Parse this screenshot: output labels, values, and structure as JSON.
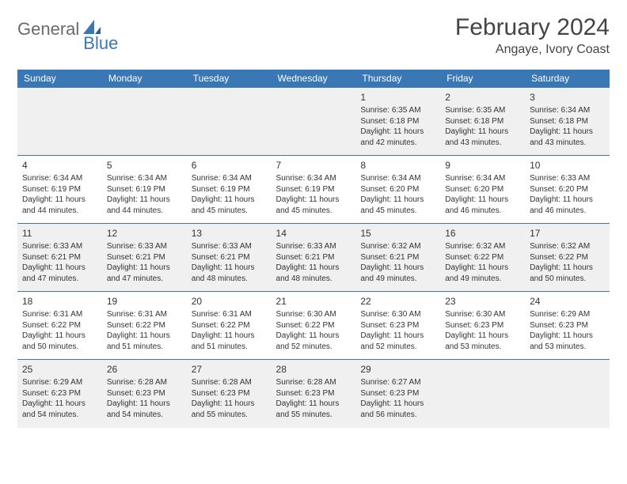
{
  "logo": {
    "part1": "General",
    "part2": "Blue",
    "accent_color": "#3a78b5",
    "gray_color": "#6a6a6a"
  },
  "title": "February 2024",
  "location": "Angaye, Ivory Coast",
  "colors": {
    "header_bg": "#3a78b5",
    "header_text": "#ffffff",
    "row_border": "#3a78b5",
    "odd_row_bg": "#f0f0f0",
    "even_row_bg": "#ffffff",
    "text": "#333333"
  },
  "fonts": {
    "title_size": 30,
    "location_size": 16,
    "header_size": 12,
    "cell_size": 10,
    "daynum_size": 12
  },
  "weekdays": [
    "Sunday",
    "Monday",
    "Tuesday",
    "Wednesday",
    "Thursday",
    "Friday",
    "Saturday"
  ],
  "weeks": [
    [
      null,
      null,
      null,
      null,
      {
        "n": "1",
        "sr": "6:35 AM",
        "ss": "6:18 PM",
        "dl": "11 hours and 42 minutes."
      },
      {
        "n": "2",
        "sr": "6:35 AM",
        "ss": "6:18 PM",
        "dl": "11 hours and 43 minutes."
      },
      {
        "n": "3",
        "sr": "6:34 AM",
        "ss": "6:18 PM",
        "dl": "11 hours and 43 minutes."
      }
    ],
    [
      {
        "n": "4",
        "sr": "6:34 AM",
        "ss": "6:19 PM",
        "dl": "11 hours and 44 minutes."
      },
      {
        "n": "5",
        "sr": "6:34 AM",
        "ss": "6:19 PM",
        "dl": "11 hours and 44 minutes."
      },
      {
        "n": "6",
        "sr": "6:34 AM",
        "ss": "6:19 PM",
        "dl": "11 hours and 45 minutes."
      },
      {
        "n": "7",
        "sr": "6:34 AM",
        "ss": "6:19 PM",
        "dl": "11 hours and 45 minutes."
      },
      {
        "n": "8",
        "sr": "6:34 AM",
        "ss": "6:20 PM",
        "dl": "11 hours and 45 minutes."
      },
      {
        "n": "9",
        "sr": "6:34 AM",
        "ss": "6:20 PM",
        "dl": "11 hours and 46 minutes."
      },
      {
        "n": "10",
        "sr": "6:33 AM",
        "ss": "6:20 PM",
        "dl": "11 hours and 46 minutes."
      }
    ],
    [
      {
        "n": "11",
        "sr": "6:33 AM",
        "ss": "6:21 PM",
        "dl": "11 hours and 47 minutes."
      },
      {
        "n": "12",
        "sr": "6:33 AM",
        "ss": "6:21 PM",
        "dl": "11 hours and 47 minutes."
      },
      {
        "n": "13",
        "sr": "6:33 AM",
        "ss": "6:21 PM",
        "dl": "11 hours and 48 minutes."
      },
      {
        "n": "14",
        "sr": "6:33 AM",
        "ss": "6:21 PM",
        "dl": "11 hours and 48 minutes."
      },
      {
        "n": "15",
        "sr": "6:32 AM",
        "ss": "6:21 PM",
        "dl": "11 hours and 49 minutes."
      },
      {
        "n": "16",
        "sr": "6:32 AM",
        "ss": "6:22 PM",
        "dl": "11 hours and 49 minutes."
      },
      {
        "n": "17",
        "sr": "6:32 AM",
        "ss": "6:22 PM",
        "dl": "11 hours and 50 minutes."
      }
    ],
    [
      {
        "n": "18",
        "sr": "6:31 AM",
        "ss": "6:22 PM",
        "dl": "11 hours and 50 minutes."
      },
      {
        "n": "19",
        "sr": "6:31 AM",
        "ss": "6:22 PM",
        "dl": "11 hours and 51 minutes."
      },
      {
        "n": "20",
        "sr": "6:31 AM",
        "ss": "6:22 PM",
        "dl": "11 hours and 51 minutes."
      },
      {
        "n": "21",
        "sr": "6:30 AM",
        "ss": "6:22 PM",
        "dl": "11 hours and 52 minutes."
      },
      {
        "n": "22",
        "sr": "6:30 AM",
        "ss": "6:23 PM",
        "dl": "11 hours and 52 minutes."
      },
      {
        "n": "23",
        "sr": "6:30 AM",
        "ss": "6:23 PM",
        "dl": "11 hours and 53 minutes."
      },
      {
        "n": "24",
        "sr": "6:29 AM",
        "ss": "6:23 PM",
        "dl": "11 hours and 53 minutes."
      }
    ],
    [
      {
        "n": "25",
        "sr": "6:29 AM",
        "ss": "6:23 PM",
        "dl": "11 hours and 54 minutes."
      },
      {
        "n": "26",
        "sr": "6:28 AM",
        "ss": "6:23 PM",
        "dl": "11 hours and 54 minutes."
      },
      {
        "n": "27",
        "sr": "6:28 AM",
        "ss": "6:23 PM",
        "dl": "11 hours and 55 minutes."
      },
      {
        "n": "28",
        "sr": "6:28 AM",
        "ss": "6:23 PM",
        "dl": "11 hours and 55 minutes."
      },
      {
        "n": "29",
        "sr": "6:27 AM",
        "ss": "6:23 PM",
        "dl": "11 hours and 56 minutes."
      },
      null,
      null
    ]
  ],
  "labels": {
    "sunrise": "Sunrise: ",
    "sunset": "Sunset: ",
    "daylight": "Daylight: "
  }
}
